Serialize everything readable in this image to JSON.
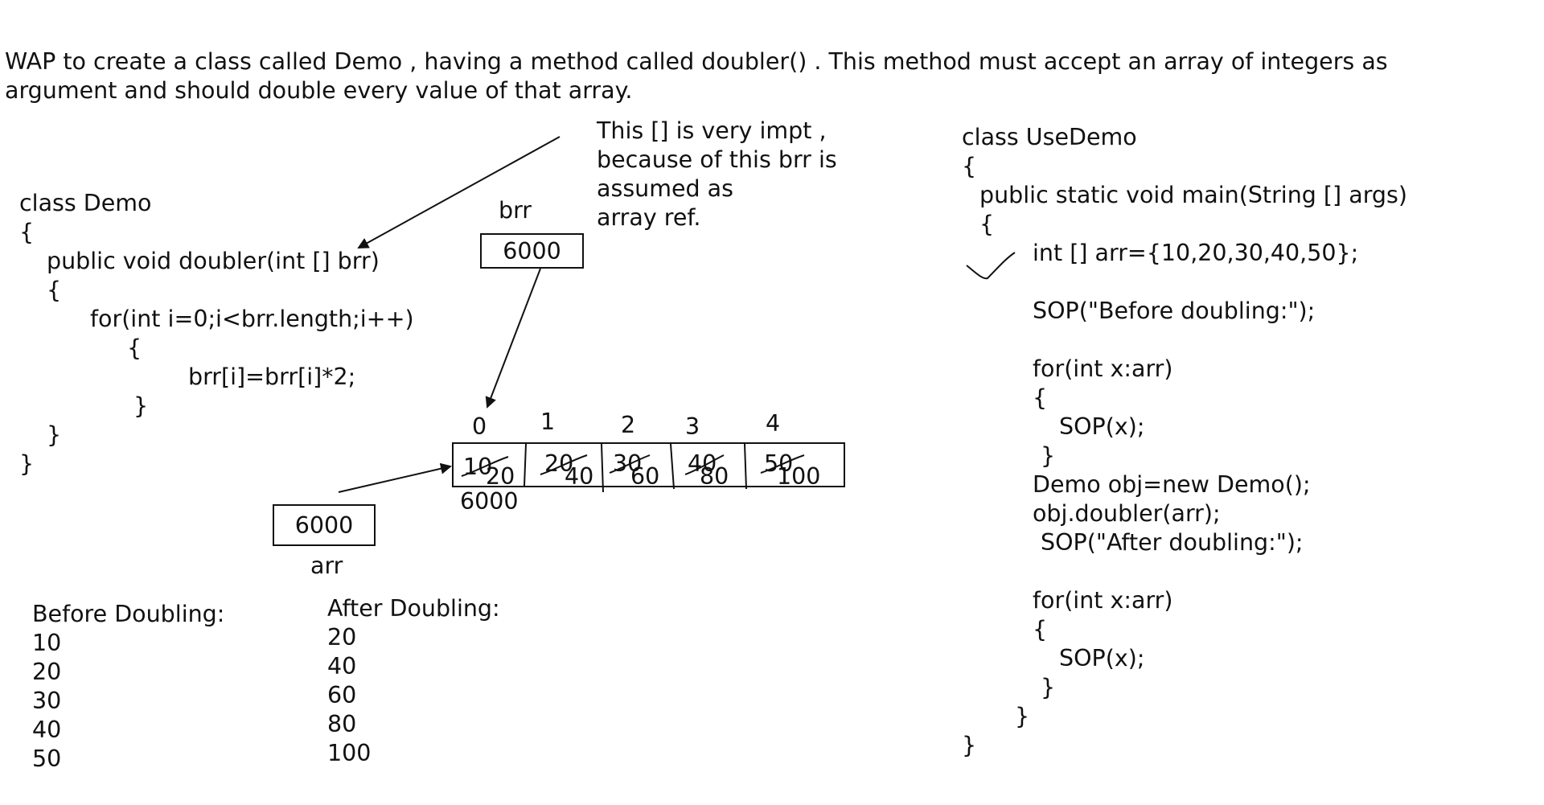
{
  "question": {
    "line1": "WAP to create a class called Demo , having a method called doubler() . This method must accept an array of integers as",
    "line2": "argument and should double every value of that array."
  },
  "demo_code": [
    "class Demo",
    "{",
    "public void doubler(int [] brr)",
    "{",
    "for(int i=0;i<brr.length;i++)",
    "{",
    "brr[i]=brr[i]*2;",
    "}",
    "}",
    "}"
  ],
  "note": [
    "This [] is very impt ,",
    "because of this brr is",
    "assumed as",
    "array ref."
  ],
  "brr": {
    "label": "brr",
    "value": "6000"
  },
  "arr": {
    "label": "arr",
    "value": "6000"
  },
  "array": {
    "address": "6000",
    "indices": [
      "0",
      "1",
      "2",
      "3",
      "4"
    ],
    "old_values": [
      "10",
      "20",
      "30",
      "40",
      "50"
    ],
    "new_values": [
      "20",
      "40",
      "60",
      "80",
      "100"
    ]
  },
  "before": {
    "title": "Before Doubling:",
    "values": [
      "10",
      "20",
      "30",
      "40",
      "50"
    ]
  },
  "after": {
    "title": "After Doubling:",
    "values": [
      "20",
      "40",
      "60",
      "80",
      "100"
    ]
  },
  "usedemo_code": [
    "class UseDemo",
    "{",
    "public static void main(String [] args)",
    "{",
    "int [] arr={10,20,30,40,50};",
    "SOP(\"Before doubling:\");",
    "for(int x:arr)",
    "{",
    "SOP(x);",
    "}",
    "Demo obj=new Demo();",
    "obj.doubler(arr);",
    "SOP(\"After doubling:\");",
    "for(int x:arr)",
    "{",
    "SOP(x);",
    "}",
    "}",
    "}"
  ]
}
